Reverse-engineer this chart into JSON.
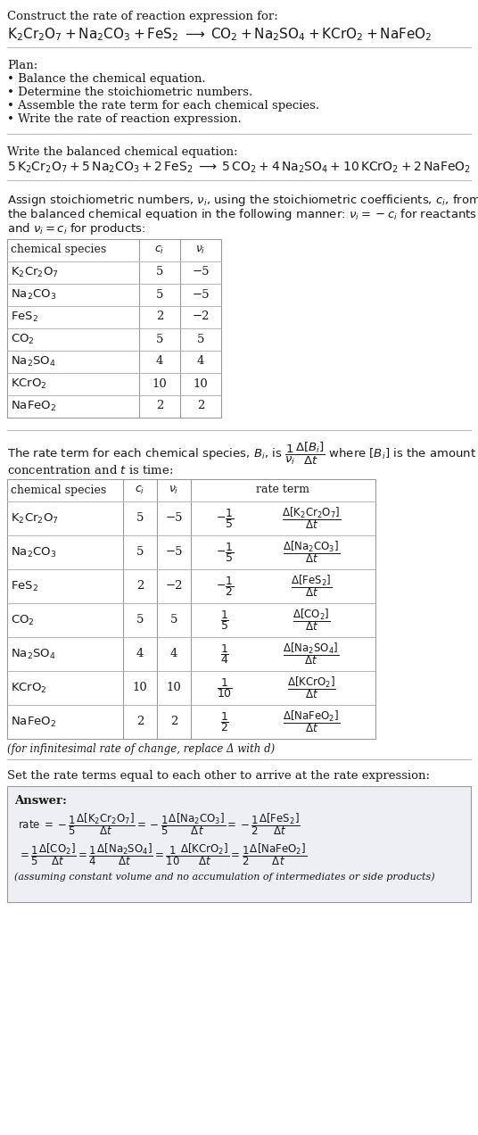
{
  "bg_color": "#ffffff",
  "text_color": "#1a1a1a",
  "table_border_color": "#999999",
  "title_line": "Construct the rate of reaction expression for:",
  "plan_label": "Plan:",
  "plan_items": [
    "• Balance the chemical equation.",
    "• Determine the stoichiometric numbers.",
    "• Assemble the rate term for each chemical species.",
    "• Write the rate of reaction expression."
  ],
  "balanced_label": "Write the balanced chemical equation:",
  "assign_line1": "Assign stoichiometric numbers, νᵢ, using the stoichiometric coefficients, cᵢ, from",
  "assign_line2": "the balanced chemical equation in the following manner: νᵢ = −cᵢ for reactants",
  "assign_line3": "and νᵢ = cᵢ for products:",
  "table1_rows": [
    [
      "K₂Cr₂O₇",
      "5",
      "−5"
    ],
    [
      "Na₂CO₃",
      "5",
      "−5"
    ],
    [
      "FeS₂",
      "2",
      "−2"
    ],
    [
      "CO₂",
      "5",
      "5"
    ],
    [
      "Na₂SO₄",
      "4",
      "4"
    ],
    [
      "KCrO₂",
      "10",
      "10"
    ],
    [
      "NaFeO₂",
      "2",
      "2"
    ]
  ],
  "rate_text1": "The rate term for each chemical species, Bᵢ, is",
  "rate_text2": "where [Bᵢ] is the amount",
  "rate_text3": "concentration and t is time:",
  "infinitesimal_note": "(for infinitesimal rate of change, replace Δ with d)",
  "set_rate_text": "Set the rate terms equal to each other to arrive at the rate expression:",
  "answer_label": "Answer:",
  "answer_note": "(assuming constant volume and no accumulation of intermediates or side products)",
  "answer_box_color": "#eeeef5",
  "ci_vals": [
    "5",
    "5",
    "2",
    "5",
    "4",
    "10",
    "2"
  ],
  "nu_vals": [
    "−5",
    "−5",
    "−2",
    "5",
    "4",
    "10",
    "2"
  ]
}
